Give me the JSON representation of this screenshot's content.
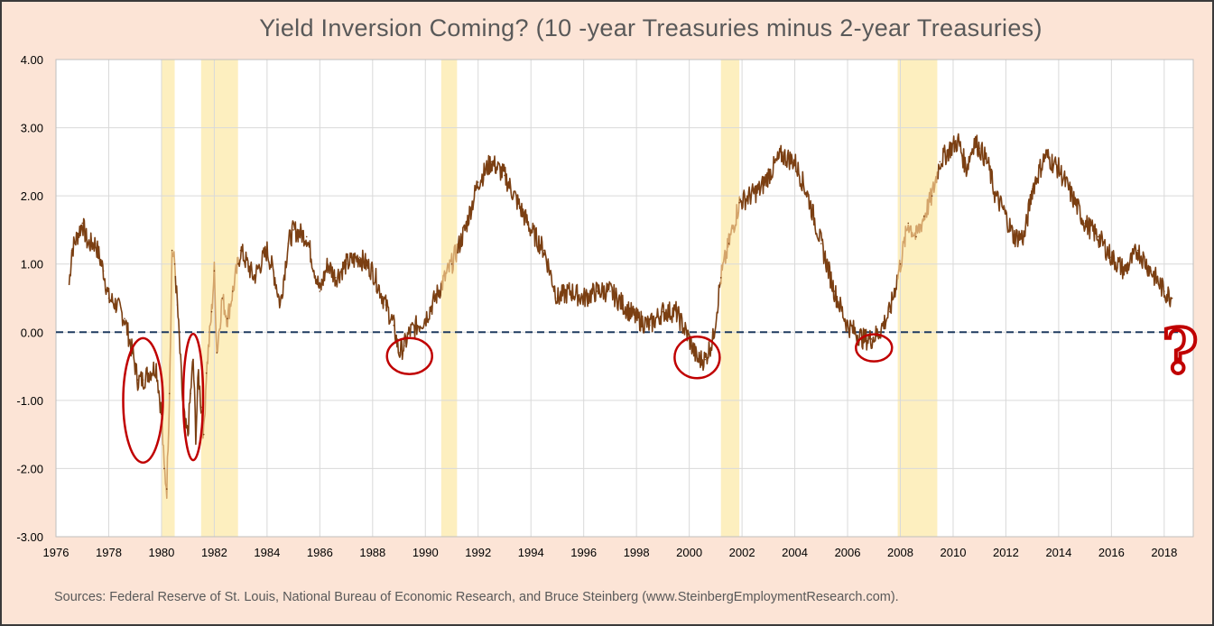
{
  "chart_data": {
    "type": "line",
    "title": "Yield Inversion Coming? (10 -year Treasuries minus 2-year Treasuries)",
    "xlabel": "",
    "ylabel": "",
    "xlim": [
      1976,
      2019.1
    ],
    "ylim": [
      -3.0,
      4.0
    ],
    "grid": true,
    "legend": "none",
    "x_ticks": [
      1976,
      1978,
      1980,
      1982,
      1984,
      1986,
      1988,
      1990,
      1992,
      1994,
      1996,
      1998,
      2000,
      2002,
      2004,
      2006,
      2008,
      2010,
      2012,
      2014,
      2016,
      2018
    ],
    "x_tick_labels": [
      "1976",
      "1978",
      "1980",
      "1982",
      "1984",
      "1986",
      "1988",
      "1990",
      "1992",
      "1994",
      "1996",
      "1998",
      "2000",
      "2002",
      "2004",
      "2006",
      "2008",
      "2010",
      "2012",
      "2014",
      "2016",
      "2018"
    ],
    "y_ticks": [
      4,
      3,
      2,
      1,
      0,
      -1,
      -2,
      -3
    ],
    "y_tick_labels": [
      "4.00",
      "3.00",
      "2.00",
      "1.00",
      "0.00",
      "-1.00",
      "-2.00",
      "-3.00"
    ],
    "recessions": [
      [
        1980.0,
        1980.5
      ],
      [
        1981.5,
        1982.9
      ],
      [
        1990.6,
        1991.2
      ],
      [
        2001.2,
        2001.9
      ],
      [
        2007.9,
        2009.4
      ]
    ],
    "series": [
      {
        "x": [
          1976.5,
          1976.6,
          1976.8,
          1977.0,
          1977.2,
          1977.5,
          1977.8,
          1978.0,
          1978.3,
          1978.6,
          1978.9,
          1979.1,
          1979.3,
          1979.5,
          1979.8,
          1980.0,
          1980.1,
          1980.2,
          1980.3,
          1980.4,
          1980.5,
          1980.6,
          1980.7,
          1980.8,
          1980.9,
          1981.0,
          1981.1,
          1981.2,
          1981.3,
          1981.4,
          1981.5,
          1981.6,
          1981.7,
          1981.9,
          1982.0,
          1982.1,
          1982.3,
          1982.5,
          1982.7,
          1982.9,
          1983.0,
          1983.5,
          1984.0,
          1984.3,
          1984.5,
          1984.8,
          1985.0,
          1985.5,
          1986.0,
          1986.3,
          1986.6,
          1987.0,
          1987.5,
          1988.0,
          1988.5,
          1988.8,
          1989.0,
          1989.2,
          1989.4,
          1989.7,
          1990.0,
          1990.5,
          1991.0,
          1991.5,
          1992.0,
          1992.5,
          1993.0,
          1993.5,
          1994.0,
          1994.5,
          1995.0,
          1995.5,
          1996.0,
          1996.5,
          1997.0,
          1997.5,
          1998.0,
          1998.5,
          1999.0,
          1999.5,
          2000.0,
          2000.3,
          2000.6,
          2000.9,
          2001.2,
          2001.5,
          2001.9,
          2002.3,
          2002.7,
          2003.0,
          2003.5,
          2004.0,
          2004.5,
          2005.0,
          2005.5,
          2006.0,
          2006.3,
          2006.6,
          2006.9,
          2007.2,
          2007.6,
          2008.0,
          2008.3,
          2008.6,
          2008.9,
          2009.2,
          2009.5,
          2009.9,
          2010.2,
          2010.5,
          2010.8,
          2011.0,
          2011.3,
          2011.6,
          2011.9,
          2012.3,
          2012.7,
          2013.0,
          2013.5,
          2014.0,
          2014.5,
          2015.0,
          2015.5,
          2016.0,
          2016.5,
          2017.0,
          2017.5,
          2018.0,
          2018.3
        ],
        "values": [
          0.7,
          1.2,
          1.4,
          1.6,
          1.3,
          1.3,
          0.9,
          0.5,
          0.4,
          0.2,
          -0.3,
          -0.7,
          -0.7,
          -0.6,
          -0.5,
          -1.2,
          -2.0,
          -2.3,
          -0.9,
          1.2,
          1.0,
          0.4,
          -0.3,
          -1.0,
          -1.4,
          -1.5,
          -0.9,
          -0.4,
          -1.5,
          -0.6,
          -1.1,
          -1.5,
          -0.6,
          0.3,
          0.9,
          -0.3,
          0.5,
          0.2,
          0.6,
          1.0,
          1.2,
          0.8,
          1.2,
          0.8,
          0.4,
          1.3,
          1.5,
          1.4,
          0.6,
          1.0,
          0.8,
          1.0,
          1.1,
          0.9,
          0.4,
          0.1,
          -0.3,
          -0.2,
          0.0,
          0.1,
          0.2,
          0.6,
          1.0,
          1.5,
          2.2,
          2.5,
          2.3,
          1.9,
          1.5,
          1.2,
          0.5,
          0.6,
          0.5,
          0.6,
          0.6,
          0.4,
          0.2,
          0.1,
          0.3,
          0.3,
          -0.1,
          -0.4,
          -0.4,
          -0.1,
          0.8,
          1.3,
          1.9,
          2.0,
          2.1,
          2.3,
          2.6,
          2.5,
          2.0,
          1.3,
          0.6,
          0.1,
          0.0,
          -0.1,
          -0.1,
          0.0,
          0.3,
          1.0,
          1.6,
          1.4,
          1.7,
          2.0,
          2.5,
          2.7,
          2.8,
          2.4,
          2.8,
          2.7,
          2.5,
          2.0,
          1.8,
          1.4,
          1.4,
          2.1,
          2.6,
          2.4,
          2.0,
          1.6,
          1.4,
          1.1,
          0.9,
          1.2,
          0.9,
          0.6,
          0.5
        ]
      }
    ],
    "annotations": [
      {
        "shape": "ellipse",
        "at": [
          1979.3,
          -1.0
        ]
      },
      {
        "shape": "ellipse",
        "at": [
          1981.2,
          -0.95
        ]
      },
      {
        "shape": "ellipse",
        "at": [
          1989.4,
          -0.35
        ]
      },
      {
        "shape": "ellipse",
        "at": [
          2000.3,
          -0.37
        ]
      },
      {
        "shape": "ellipse",
        "at": [
          2007.0,
          -0.23
        ]
      },
      {
        "shape": "question-mark",
        "at": [
          2018.6,
          -0.25
        ]
      }
    ],
    "colors": {
      "line": "#7b3f12",
      "line_recession": "#d4a46a",
      "recession_band": "#fdefbf",
      "zero_line": "#1f3b60",
      "annotation": "#c00000",
      "background": "#fce4d6",
      "grid": "#d9d9d9"
    }
  },
  "sources": "Sources: Federal Reserve of St. Louis, National Bureau of Economic Research, and Bruce Steinberg (www.SteinbergEmploymentResearch.com)."
}
